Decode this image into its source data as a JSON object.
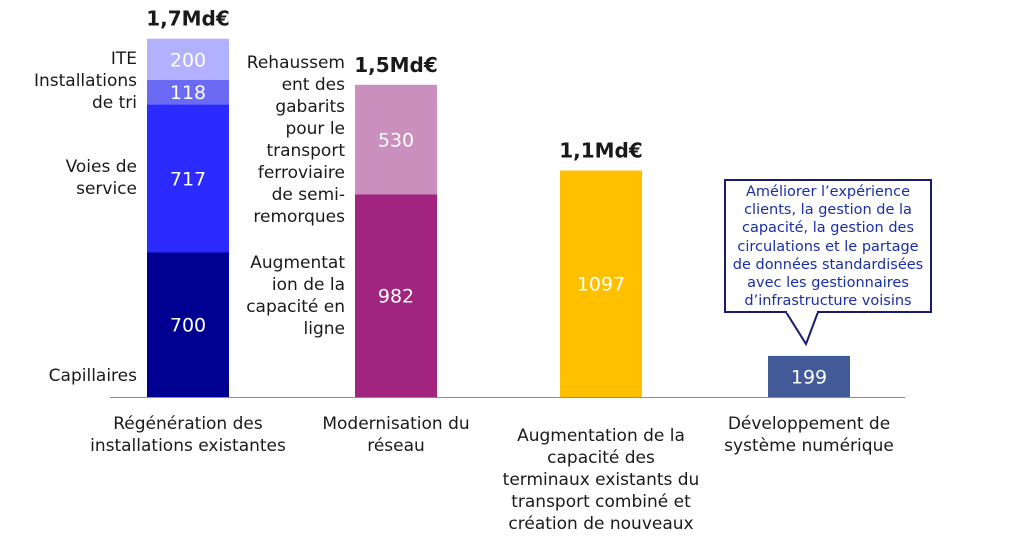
{
  "chart_data": {
    "type": "bar",
    "stacked": true,
    "categories": [
      "Régénération des installations existantes",
      "Modernisation du réseau",
      "Augmentation de la capacité des terminaux existants du transport combiné et création de nouveaux",
      "Développement de système numérique"
    ],
    "category_lines": [
      [
        "Régénération des",
        "installations existantes"
      ],
      [
        "Modernisation du",
        "réseau"
      ],
      [
        "Augmentation de la",
        "capacité des",
        "terminaux existants du",
        "transport combiné et",
        "création de nouveaux"
      ],
      [
        "Développement de",
        "système numérique"
      ]
    ],
    "totals": [
      "1,7Md€",
      "1,5Md€",
      "1,1Md€",
      ""
    ],
    "stacks": [
      [
        {
          "name": "Capillaires",
          "lines": [
            "Capillaires"
          ],
          "value": 700,
          "color": "#000091"
        },
        {
          "name": "Voies de service",
          "lines": [
            "Voies de",
            "service"
          ],
          "value": 717,
          "color": "#2b2bff"
        },
        {
          "name": "Installations de tri",
          "lines": [
            "Installations",
            "de tri"
          ],
          "value": 118,
          "color": "#6a6af4"
        },
        {
          "name": "ITE",
          "lines": [
            "ITE"
          ],
          "value": 200,
          "color": "#b1b1ff"
        }
      ],
      [
        {
          "name": "Augmentation de la capacité en ligne",
          "lines": [
            "Augmentat",
            "ion de la",
            "capacité en",
            "ligne"
          ],
          "value": 982,
          "color": "#a1257e"
        },
        {
          "name": "Rehaussement des gabarits pour le transport ferroviaire de semi-remorques",
          "lines": [
            "Rehaussem",
            "ent des",
            "gabarits",
            "pour le",
            "transport",
            "ferroviaire",
            "de semi-",
            "remorques"
          ],
          "value": 530,
          "color": "#ca8fbd"
        }
      ],
      [
        {
          "name": "",
          "lines": [],
          "value": 1097,
          "color": "#ffc000"
        }
      ],
      [
        {
          "name": "",
          "lines": [],
          "value": 199,
          "color": "#435a99"
        }
      ]
    ],
    "callout": {
      "lines": [
        "Améliorer l’expérience",
        "clients, la gestion de la",
        "capacité, la gestion des",
        "circulations et le partage",
        "de données standardisées",
        "avec les gestionnaires",
        "d’infrastructure voisins"
      ],
      "category": "Développement de système numérique"
    },
    "xlabel": "",
    "ylabel": "",
    "legend": "none",
    "grid": false
  }
}
